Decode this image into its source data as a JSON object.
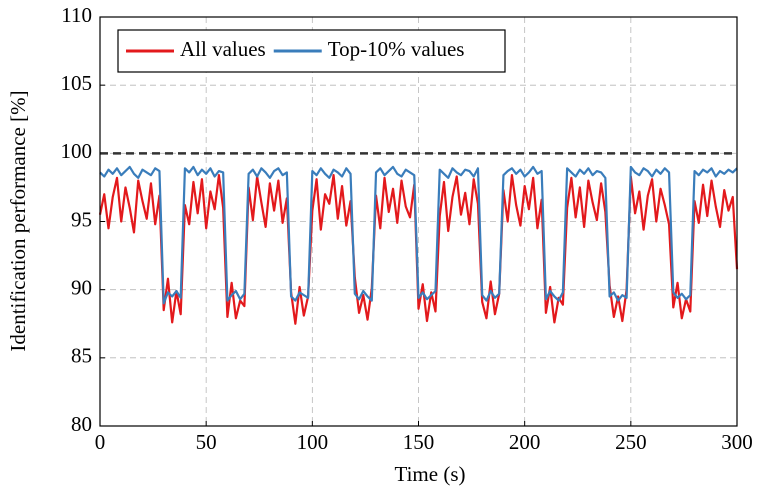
{
  "chart_data": {
    "type": "line",
    "xlabel": "Time (s)",
    "ylabel": "Identification performance [%]",
    "xlim": [
      0,
      300
    ],
    "xticks": [
      0,
      50,
      100,
      150,
      200,
      250,
      300
    ],
    "ylim": [
      80,
      110
    ],
    "yticks": [
      80,
      85,
      90,
      95,
      100,
      105,
      110
    ],
    "grid": true,
    "legend": "top-left",
    "reference_line": 100,
    "x": [
      0,
      2,
      4,
      6,
      8,
      10,
      12,
      14,
      16,
      18,
      20,
      22,
      24,
      26,
      28,
      30,
      32,
      34,
      36,
      38,
      40,
      42,
      44,
      46,
      48,
      50,
      52,
      54,
      56,
      58,
      60,
      62,
      64,
      66,
      68,
      70,
      72,
      74,
      76,
      78,
      80,
      82,
      84,
      86,
      88,
      90,
      92,
      94,
      96,
      98,
      100,
      102,
      104,
      106,
      108,
      110,
      112,
      114,
      116,
      118,
      120,
      122,
      124,
      126,
      128,
      130,
      132,
      134,
      136,
      138,
      140,
      142,
      144,
      146,
      148,
      150,
      152,
      154,
      156,
      158,
      160,
      162,
      164,
      166,
      168,
      170,
      172,
      174,
      176,
      178,
      180,
      182,
      184,
      186,
      188,
      190,
      192,
      194,
      196,
      198,
      200,
      202,
      204,
      206,
      208,
      210,
      212,
      214,
      216,
      218,
      220,
      222,
      224,
      226,
      228,
      230,
      232,
      234,
      236,
      238,
      240,
      242,
      244,
      246,
      248,
      250,
      252,
      254,
      256,
      258,
      260,
      262,
      264,
      266,
      268,
      270,
      272,
      274,
      276,
      278,
      280,
      282,
      284,
      286,
      288,
      290,
      292,
      294,
      296,
      298,
      300
    ],
    "series": [
      {
        "name": "All values",
        "color": "#e3191c",
        "values": [
          95.5,
          97.0,
          94.5,
          96.8,
          98.2,
          95.0,
          97.5,
          96.0,
          94.2,
          98.0,
          96.5,
          95.2,
          97.8,
          94.8,
          96.9,
          88.5,
          90.8,
          87.6,
          89.9,
          88.2,
          96.2,
          94.8,
          97.9,
          95.6,
          98.1,
          94.5,
          97.2,
          95.9,
          98.4,
          96.0,
          88.0,
          90.5,
          87.9,
          89.2,
          88.8,
          97.5,
          95.1,
          98.3,
          96.4,
          94.6,
          97.8,
          95.8,
          98.0,
          94.9,
          96.7,
          89.8,
          87.5,
          90.2,
          88.1,
          89.5,
          95.8,
          98.1,
          94.4,
          97.0,
          96.3,
          98.4,
          95.2,
          97.6,
          94.7,
          96.5,
          90.9,
          88.3,
          89.6,
          87.8,
          90.1,
          96.9,
          94.5,
          98.2,
          95.7,
          97.4,
          94.9,
          98.0,
          96.1,
          95.3,
          97.7,
          88.6,
          90.4,
          87.7,
          89.8,
          88.4,
          95.4,
          97.9,
          94.3,
          96.8,
          98.3,
          95.5,
          97.1,
          94.8,
          98.1,
          96.3,
          89.1,
          87.9,
          90.6,
          88.2,
          89.7,
          97.3,
          95.0,
          98.4,
          96.2,
          94.7,
          97.6,
          95.9,
          98.2,
          94.5,
          96.6,
          88.3,
          90.2,
          87.6,
          89.4,
          88.9,
          96.0,
          98.2,
          95.3,
          97.5,
          94.6,
          98.0,
          96.4,
          95.1,
          97.8,
          95.7,
          90.3,
          88.0,
          89.5,
          87.7,
          90.0,
          98.3,
          95.6,
          97.2,
          94.4,
          96.9,
          98.1,
          95.0,
          97.4,
          96.2,
          94.8,
          88.7,
          90.5,
          87.9,
          89.3,
          88.4,
          96.5,
          94.9,
          97.7,
          95.4,
          98.0,
          96.1,
          94.6,
          97.3,
          95.8,
          96.8,
          91.5
        ]
      },
      {
        "name": "Top-10% values",
        "color": "#3a7dbb",
        "values": [
          98.6,
          98.3,
          98.8,
          98.5,
          98.9,
          98.4,
          98.7,
          99.0,
          98.5,
          98.2,
          98.8,
          98.6,
          98.4,
          98.9,
          98.7,
          89.0,
          89.8,
          89.5,
          89.9,
          89.4,
          98.9,
          98.6,
          99.0,
          98.4,
          98.8,
          98.5,
          98.9,
          98.3,
          98.7,
          98.6,
          89.2,
          89.6,
          89.9,
          89.3,
          89.7,
          98.5,
          98.8,
          98.3,
          98.9,
          98.6,
          98.2,
          98.7,
          98.9,
          98.4,
          98.6,
          89.5,
          89.2,
          89.8,
          89.6,
          89.4,
          98.7,
          98.4,
          98.9,
          98.5,
          98.2,
          98.8,
          98.6,
          98.3,
          98.9,
          98.5,
          89.7,
          89.3,
          89.9,
          89.5,
          89.2,
          98.6,
          98.9,
          98.4,
          98.7,
          99.0,
          98.5,
          98.3,
          98.8,
          98.6,
          98.4,
          89.4,
          89.8,
          89.3,
          89.6,
          89.9,
          98.8,
          98.5,
          98.2,
          98.9,
          98.6,
          98.4,
          98.8,
          98.7,
          98.3,
          98.9,
          89.6,
          89.2,
          89.9,
          89.4,
          89.7,
          98.4,
          98.7,
          98.9,
          98.5,
          98.8,
          98.3,
          98.6,
          99.0,
          98.5,
          98.7,
          89.3,
          89.9,
          89.5,
          89.2,
          89.8,
          98.9,
          98.6,
          98.3,
          98.8,
          98.5,
          98.9,
          98.4,
          98.7,
          98.6,
          98.2,
          89.5,
          89.8,
          89.2,
          89.6,
          89.4,
          99.0,
          98.6,
          98.4,
          98.9,
          98.7,
          98.3,
          98.8,
          98.5,
          98.9,
          98.6,
          89.8,
          89.4,
          89.7,
          89.3,
          89.6,
          98.7,
          98.4,
          98.8,
          98.6,
          98.9,
          98.3,
          98.7,
          98.5,
          98.8,
          98.6,
          98.9
        ]
      }
    ]
  }
}
